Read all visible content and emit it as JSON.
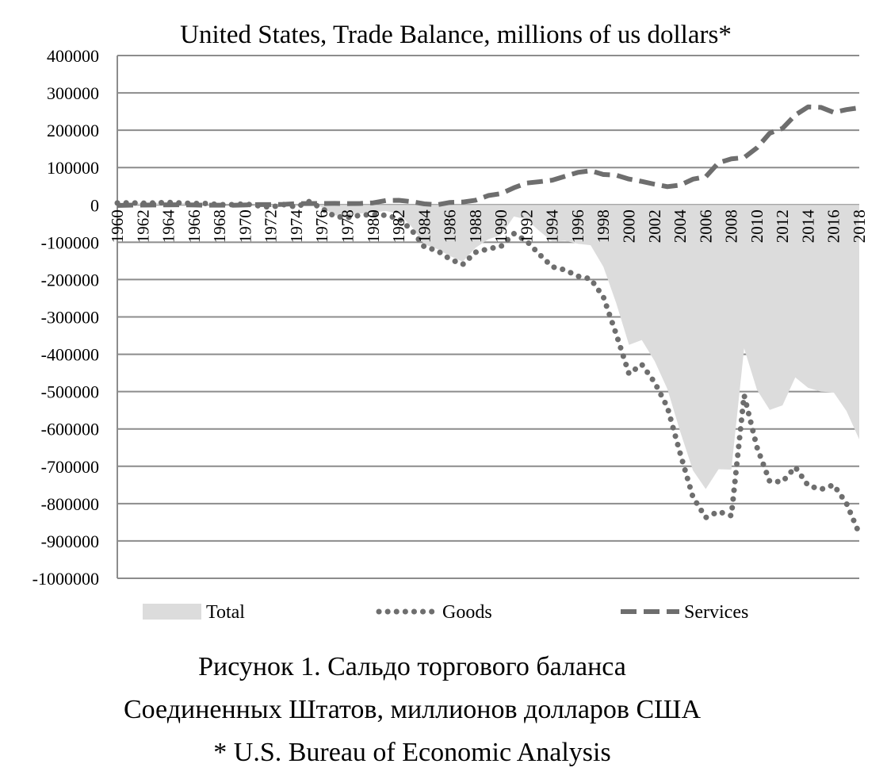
{
  "chart_data": {
    "type": "area",
    "title": "United States, Trade Balance, millions of us dollars*",
    "xlabel": "",
    "ylabel": "",
    "ylim": [
      -1000000,
      400000
    ],
    "yticks": [
      400000,
      300000,
      200000,
      100000,
      0,
      -100000,
      -200000,
      -300000,
      -400000,
      -500000,
      -600000,
      -700000,
      -800000,
      -900000,
      -1000000
    ],
    "grid": true,
    "legend_position": "bottom",
    "x": [
      1960,
      1961,
      1962,
      1963,
      1964,
      1965,
      1966,
      1967,
      1968,
      1969,
      1970,
      1971,
      1972,
      1973,
      1974,
      1975,
      1976,
      1977,
      1978,
      1979,
      1980,
      1981,
      1982,
      1983,
      1984,
      1985,
      1986,
      1987,
      1988,
      1989,
      1990,
      1991,
      1992,
      1993,
      1994,
      1995,
      1996,
      1997,
      1998,
      1999,
      2000,
      2001,
      2002,
      2003,
      2004,
      2005,
      2006,
      2007,
      2008,
      2009,
      2010,
      2011,
      2012,
      2013,
      2014,
      2015,
      2016,
      2017,
      2018
    ],
    "xticks": [
      "1960",
      "1962",
      "1964",
      "1966",
      "1968",
      "1970",
      "1972",
      "1974",
      "1976",
      "1978",
      "1980",
      "1982",
      "1984",
      "1986",
      "1988",
      "1990",
      "1992",
      "1994",
      "1996",
      "1998",
      "2000",
      "2002",
      "2004",
      "2006",
      "2008",
      "2010",
      "2012",
      "2014",
      "2016",
      "2018"
    ],
    "series": [
      {
        "name": "Total",
        "style": "area",
        "color": "#dcdcdc",
        "values": [
          4000,
          5000,
          4000,
          5000,
          7000,
          5000,
          3000,
          3000,
          0,
          1000,
          2000,
          -2000,
          -6000,
          1000,
          -2000,
          12000,
          -7000,
          -28000,
          -30000,
          -23000,
          -20000,
          -16000,
          -24000,
          -58000,
          -106000,
          -118000,
          -137000,
          -152000,
          -115000,
          -92000,
          -81000,
          -31000,
          -39000,
          -70000,
          -98000,
          -96000,
          -104000,
          -108000,
          -166000,
          -263000,
          -375000,
          -362000,
          -418000,
          -493000,
          -607000,
          -711000,
          -761000,
          -708000,
          -709000,
          -384000,
          -495000,
          -549000,
          -537000,
          -462000,
          -490000,
          -500000,
          -502000,
          -552000,
          -628000
        ]
      },
      {
        "name": "Goods",
        "style": "dotted",
        "color": "#6e6e6e",
        "values": [
          5000,
          5500,
          4500,
          5200,
          6800,
          5000,
          3800,
          3800,
          600,
          600,
          2600,
          -2300,
          -6400,
          900,
          -5500,
          8900,
          -9500,
          -31100,
          -33900,
          -27600,
          -25500,
          -28000,
          -36500,
          -67100,
          -112500,
          -122200,
          -145100,
          -159600,
          -127000,
          -117700,
          -111000,
          -76900,
          -96900,
          -132500,
          -165800,
          -174200,
          -191000,
          -198100,
          -246700,
          -346000,
          -452400,
          -427200,
          -475200,
          -541600,
          -665400,
          -782800,
          -837300,
          -821200,
          -832500,
          -509700,
          -648700,
          -740600,
          -741200,
          -702200,
          -751500,
          -761900,
          -749800,
          -799300,
          -880300
        ]
      },
      {
        "name": "Services",
        "style": "dashed",
        "color": "#6e6e6e",
        "values": [
          -1400,
          -600,
          -400,
          -200,
          200,
          300,
          -300,
          -800,
          -600,
          -1000,
          -300,
          900,
          800,
          1500,
          3500,
          3500,
          3900,
          4000,
          3500,
          3900,
          5500,
          11800,
          12300,
          8700,
          2700,
          200,
          6500,
          7700,
          12400,
          25000,
          30200,
          45800,
          58500,
          62100,
          66200,
          76600,
          87000,
          91500,
          81400,
          79500,
          69200,
          62800,
          55300,
          48800,
          52900,
          68900,
          75200,
          112900,
          123300,
          126600,
          152700,
          192000,
          205000,
          240600,
          262400,
          261200,
          247700,
          255200,
          260000
        ]
      }
    ]
  },
  "captions": {
    "line1": "Рисунок 1. Сальдо торгового баланса",
    "line2": "Соединенных Штатов, миллионов долларов США",
    "line3": "* U.S. Bureau of Economic Analysis"
  }
}
